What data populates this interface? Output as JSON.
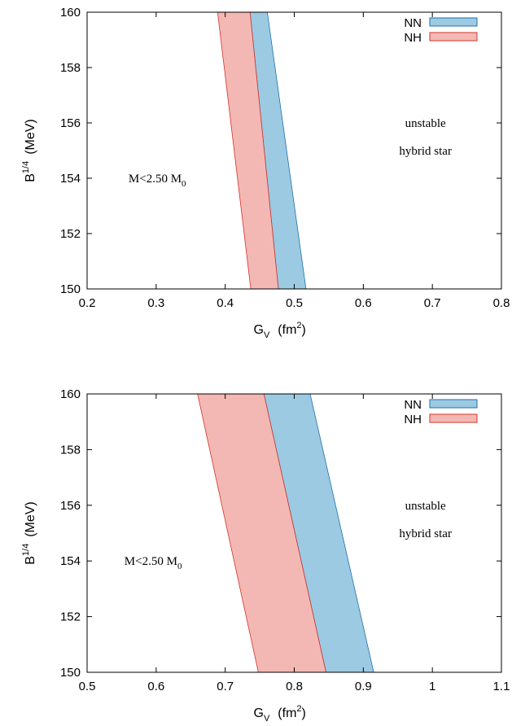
{
  "chart_data": [
    {
      "type": "area",
      "xlabel": "G",
      "xlabel_sub": "V",
      "xlabel_unit": "(fm",
      "xlabel_unit_sup": "2",
      "xlabel_unit_end": ")",
      "ylabel": "B",
      "ylabel_sup": "1/4",
      "ylabel_unit": "(MeV)",
      "xlim": [
        0.2,
        0.8
      ],
      "ylim": [
        150,
        160
      ],
      "xticks": [
        0.2,
        0.3,
        0.4,
        0.5,
        0.6,
        0.7,
        0.8
      ],
      "xtick_labels": [
        "0.2",
        "0.3",
        "0.4",
        "0.5",
        "0.6",
        "0.7",
        "0.8"
      ],
      "yticks": [
        150,
        152,
        154,
        156,
        158,
        160
      ],
      "ytick_labels": [
        "150",
        "152",
        "154",
        "156",
        "158",
        "160"
      ],
      "legend_position": "top-right",
      "series": [
        {
          "name": "NN",
          "fill": "#9ccae2",
          "stroke": "#1f6fb0",
          "polygon": [
            [
              0.436,
              160
            ],
            [
              0.461,
              160
            ],
            [
              0.517,
              150
            ],
            [
              0.477,
              150
            ]
          ]
        },
        {
          "name": "NH",
          "fill": "#f4b8b4",
          "stroke": "#d0332a",
          "polygon": [
            [
              0.389,
              160
            ],
            [
              0.436,
              160
            ],
            [
              0.477,
              150
            ],
            [
              0.437,
              150
            ]
          ]
        }
      ],
      "annotations": [
        {
          "text": "unstable",
          "x": 0.69,
          "y": 156
        },
        {
          "text": "hybrid star",
          "x": 0.69,
          "y": 155
        },
        {
          "text": "M<2.50 M",
          "sub": "0",
          "x": 0.26,
          "y": 154
        }
      ]
    },
    {
      "type": "area",
      "xlabel": "G",
      "xlabel_sub": "V",
      "xlabel_unit": "(fm",
      "xlabel_unit_sup": "2",
      "xlabel_unit_end": ")",
      "ylabel": "B",
      "ylabel_sup": "1/4",
      "ylabel_unit": "(MeV)",
      "xlim": [
        0.5,
        1.1
      ],
      "ylim": [
        150,
        160
      ],
      "xticks": [
        0.5,
        0.6,
        0.7,
        0.8,
        0.9,
        1.0,
        1.1
      ],
      "xtick_labels": [
        "0.5",
        "0.6",
        "0.7",
        "0.8",
        "0.9",
        "1",
        "1.1"
      ],
      "yticks": [
        150,
        152,
        154,
        156,
        158,
        160
      ],
      "ytick_labels": [
        "150",
        "152",
        "154",
        "156",
        "158",
        "160"
      ],
      "legend_position": "top-right",
      "series": [
        {
          "name": "NN",
          "fill": "#9ccae2",
          "stroke": "#1f6fb0",
          "polygon": [
            [
              0.756,
              160
            ],
            [
              0.823,
              160
            ],
            [
              0.915,
              150
            ],
            [
              0.846,
              150
            ]
          ]
        },
        {
          "name": "NH",
          "fill": "#f4b8b4",
          "stroke": "#d0332a",
          "polygon": [
            [
              0.66,
              160
            ],
            [
              0.756,
              160
            ],
            [
              0.846,
              150
            ],
            [
              0.748,
              150
            ]
          ]
        }
      ],
      "annotations": [
        {
          "text": "unstable",
          "x": 0.99,
          "y": 156
        },
        {
          "text": "hybrid star",
          "x": 0.99,
          "y": 155
        },
        {
          "text": "M<2.50 M",
          "sub": "0",
          "x": 0.554,
          "y": 154
        }
      ]
    }
  ]
}
